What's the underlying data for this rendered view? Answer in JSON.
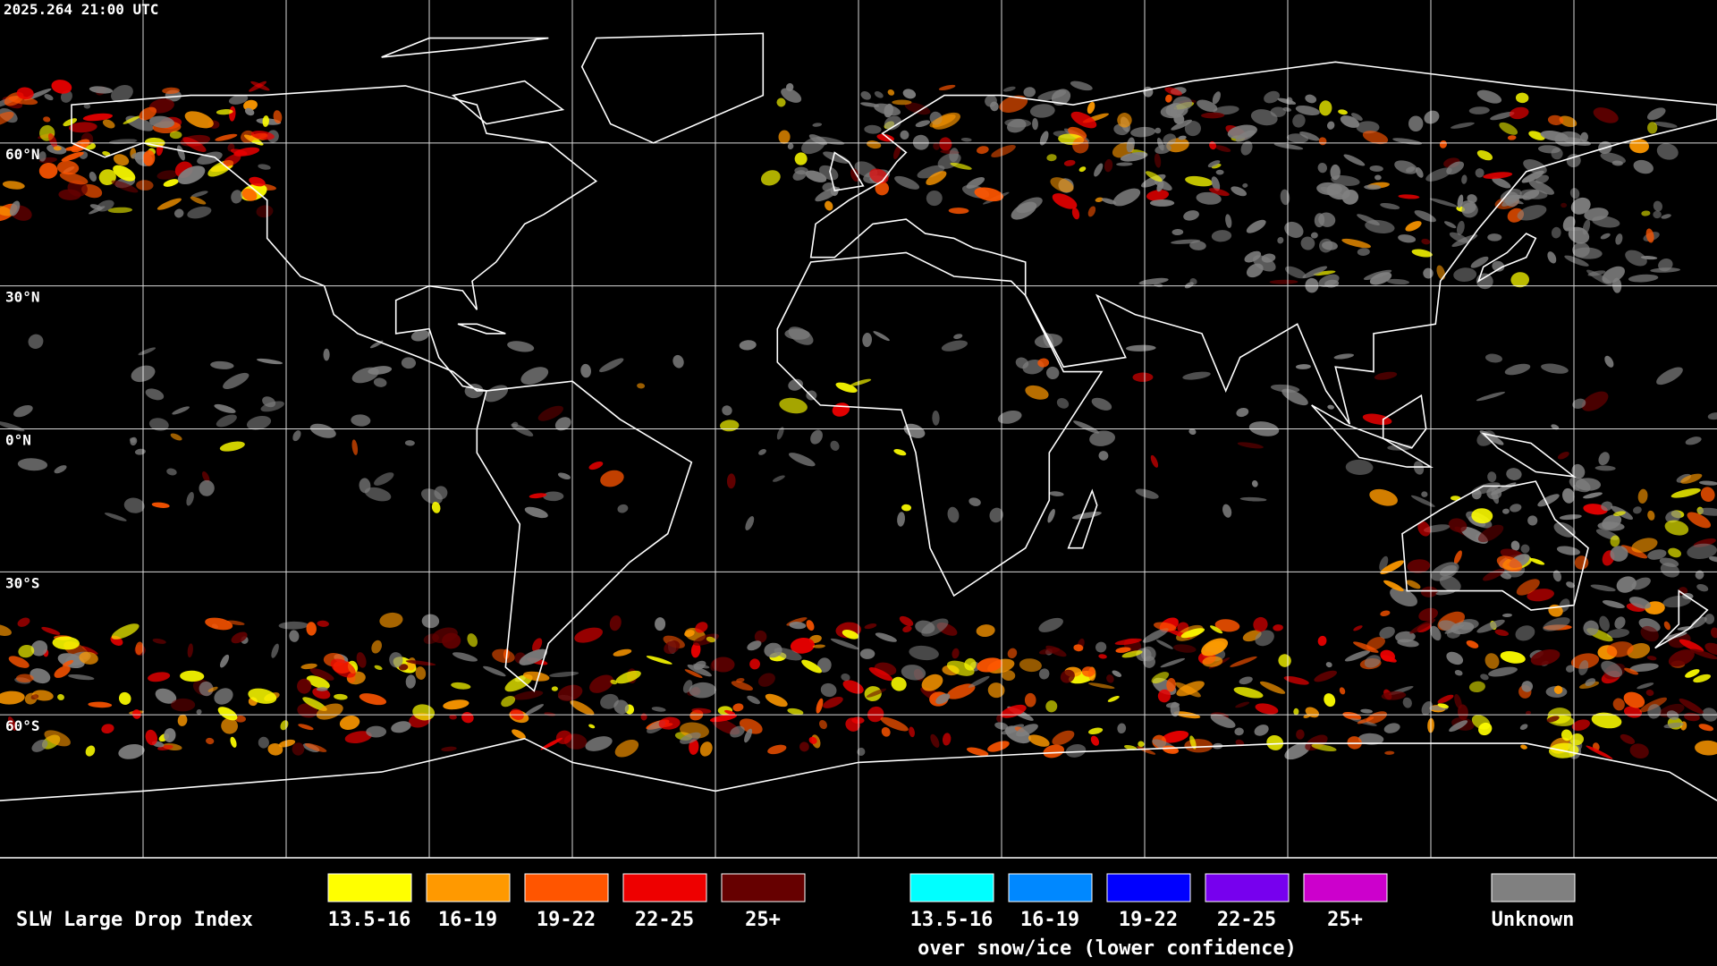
{
  "header": {
    "timestamp": "2025.264 21:00 UTC"
  },
  "map": {
    "latitude_labels": [
      "60°N",
      "30°N",
      "0°N",
      "30°S",
      "60°S"
    ]
  },
  "legend": {
    "title": "SLW Large Drop Index",
    "items": [
      {
        "label": "13.5-16",
        "color": "#ffff00"
      },
      {
        "label": "16-19",
        "color": "#ff9900"
      },
      {
        "label": "19-22",
        "color": "#ff5500"
      },
      {
        "label": "22-25",
        "color": "#ee0000"
      },
      {
        "label": "25+",
        "color": "#660000"
      }
    ],
    "snow_ice_items": [
      {
        "label": "13.5-16",
        "color": "#00ffff"
      },
      {
        "label": "16-19",
        "color": "#0088ff"
      },
      {
        "label": "19-22",
        "color": "#0000ff"
      },
      {
        "label": "22-25",
        "color": "#7700ee"
      },
      {
        "label": "25+",
        "color": "#cc00cc"
      }
    ],
    "snow_ice_caption": "over snow/ice (lower confidence)",
    "unknown": {
      "label": "Unknown",
      "color": "#808080"
    }
  }
}
